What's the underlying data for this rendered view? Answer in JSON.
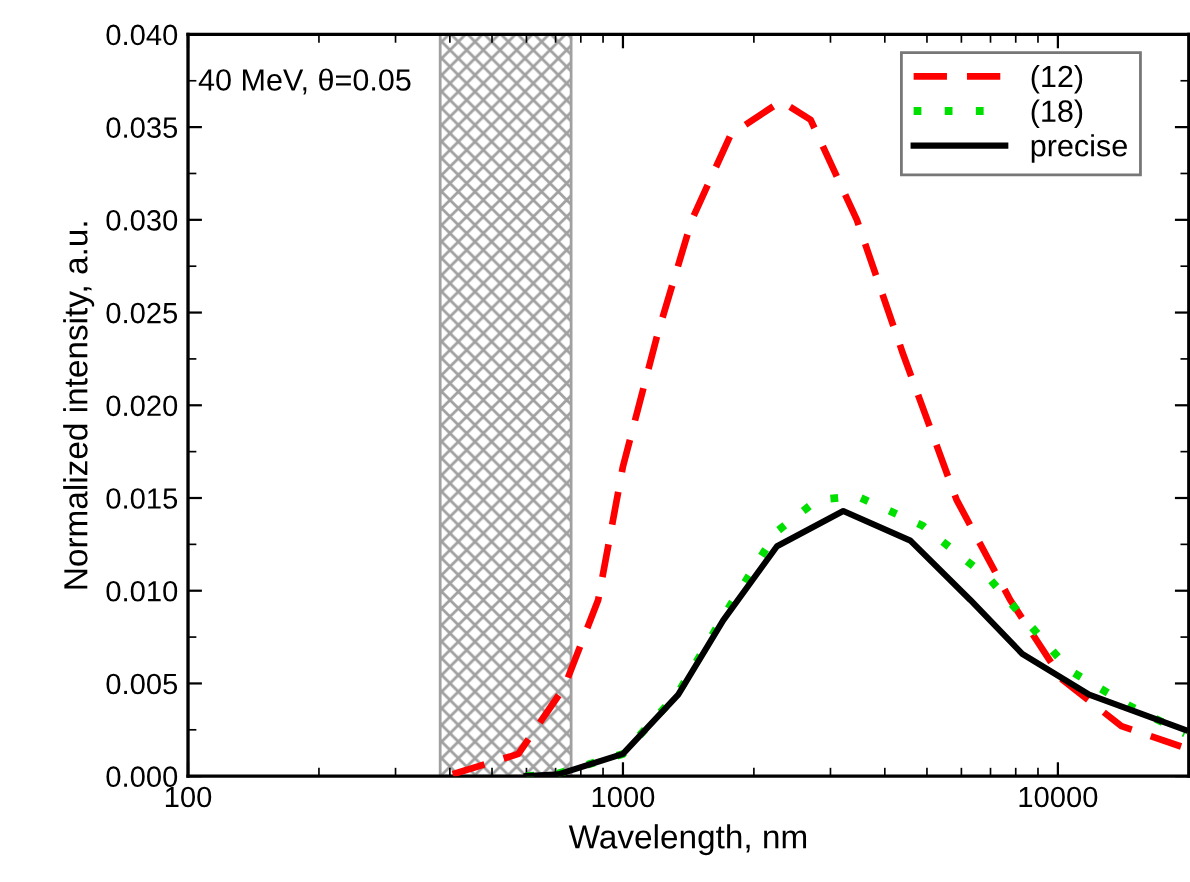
{
  "chart_data": {
    "type": "line",
    "xlabel": "Wavelength, nm",
    "ylabel": "Normalized intensity, a.u.",
    "log": "x",
    "xlim": [
      100,
      20000
    ],
    "xticks": [
      100,
      1000,
      10000
    ],
    "ylim": [
      0,
      0.04
    ],
    "yticks": [
      {
        "value": 0,
        "label": "0.000"
      },
      {
        "value": 0.005,
        "label": "0.005"
      },
      {
        "value": 0.01,
        "label": "0.010"
      },
      {
        "value": 0.015,
        "label": "0.015"
      },
      {
        "value": 0.02,
        "label": "0.020"
      },
      {
        "value": 0.025,
        "label": "0.025"
      },
      {
        "value": 0.03,
        "label": "0.030"
      },
      {
        "value": 0.035,
        "label": "0.035"
      },
      {
        "value": 0.04,
        "label": "0.040"
      }
    ],
    "grid": false,
    "legend": "top right",
    "annotations": [
      "40 MeV, θ=0.05"
    ],
    "bands": [
      {
        "axis": "x",
        "from": 380,
        "to": 760,
        "color": "#a0a0a0"
      }
    ],
    "series": [
      {
        "name": "(12)",
        "color": "#ff0000",
        "line_style": "dashed",
        "x": [
          406,
          575,
          733,
          877,
          1000,
          1200,
          1440,
          1770,
          2310,
          2700,
          3450,
          4400,
          5850,
          7770,
          10240,
          14000,
          19200
        ],
        "values": [
          0.0001,
          0.0012,
          0.0048,
          0.0095,
          0.0167,
          0.0238,
          0.03,
          0.0346,
          0.0364,
          0.0354,
          0.03,
          0.0228,
          0.0149,
          0.0095,
          0.0052,
          0.0027,
          0.0016
        ]
      },
      {
        "name": "(18)",
        "color": "#00e000",
        "line_style": "dotted",
        "x": [
          600,
          700,
          1000,
          1340,
          1700,
          2260,
          2800,
          3450,
          4890,
          6990,
          10650,
          14600,
          19600
        ],
        "values": [
          0,
          0.0001,
          0.0012,
          0.0045,
          0.0086,
          0.0132,
          0.0149,
          0.0151,
          0.0135,
          0.0106,
          0.0057,
          0.0038,
          0.0023
        ]
      },
      {
        "name": "precise",
        "color": "#000000",
        "line_style": "solid",
        "x": [
          600,
          710,
          1000,
          1340,
          1700,
          2260,
          3210,
          4580,
          6290,
          8280,
          11800,
          19600
        ],
        "values": [
          0,
          0.0001,
          0.0012,
          0.0044,
          0.0084,
          0.0124,
          0.0143,
          0.0127,
          0.0095,
          0.0066,
          0.0044,
          0.0025
        ]
      }
    ]
  }
}
